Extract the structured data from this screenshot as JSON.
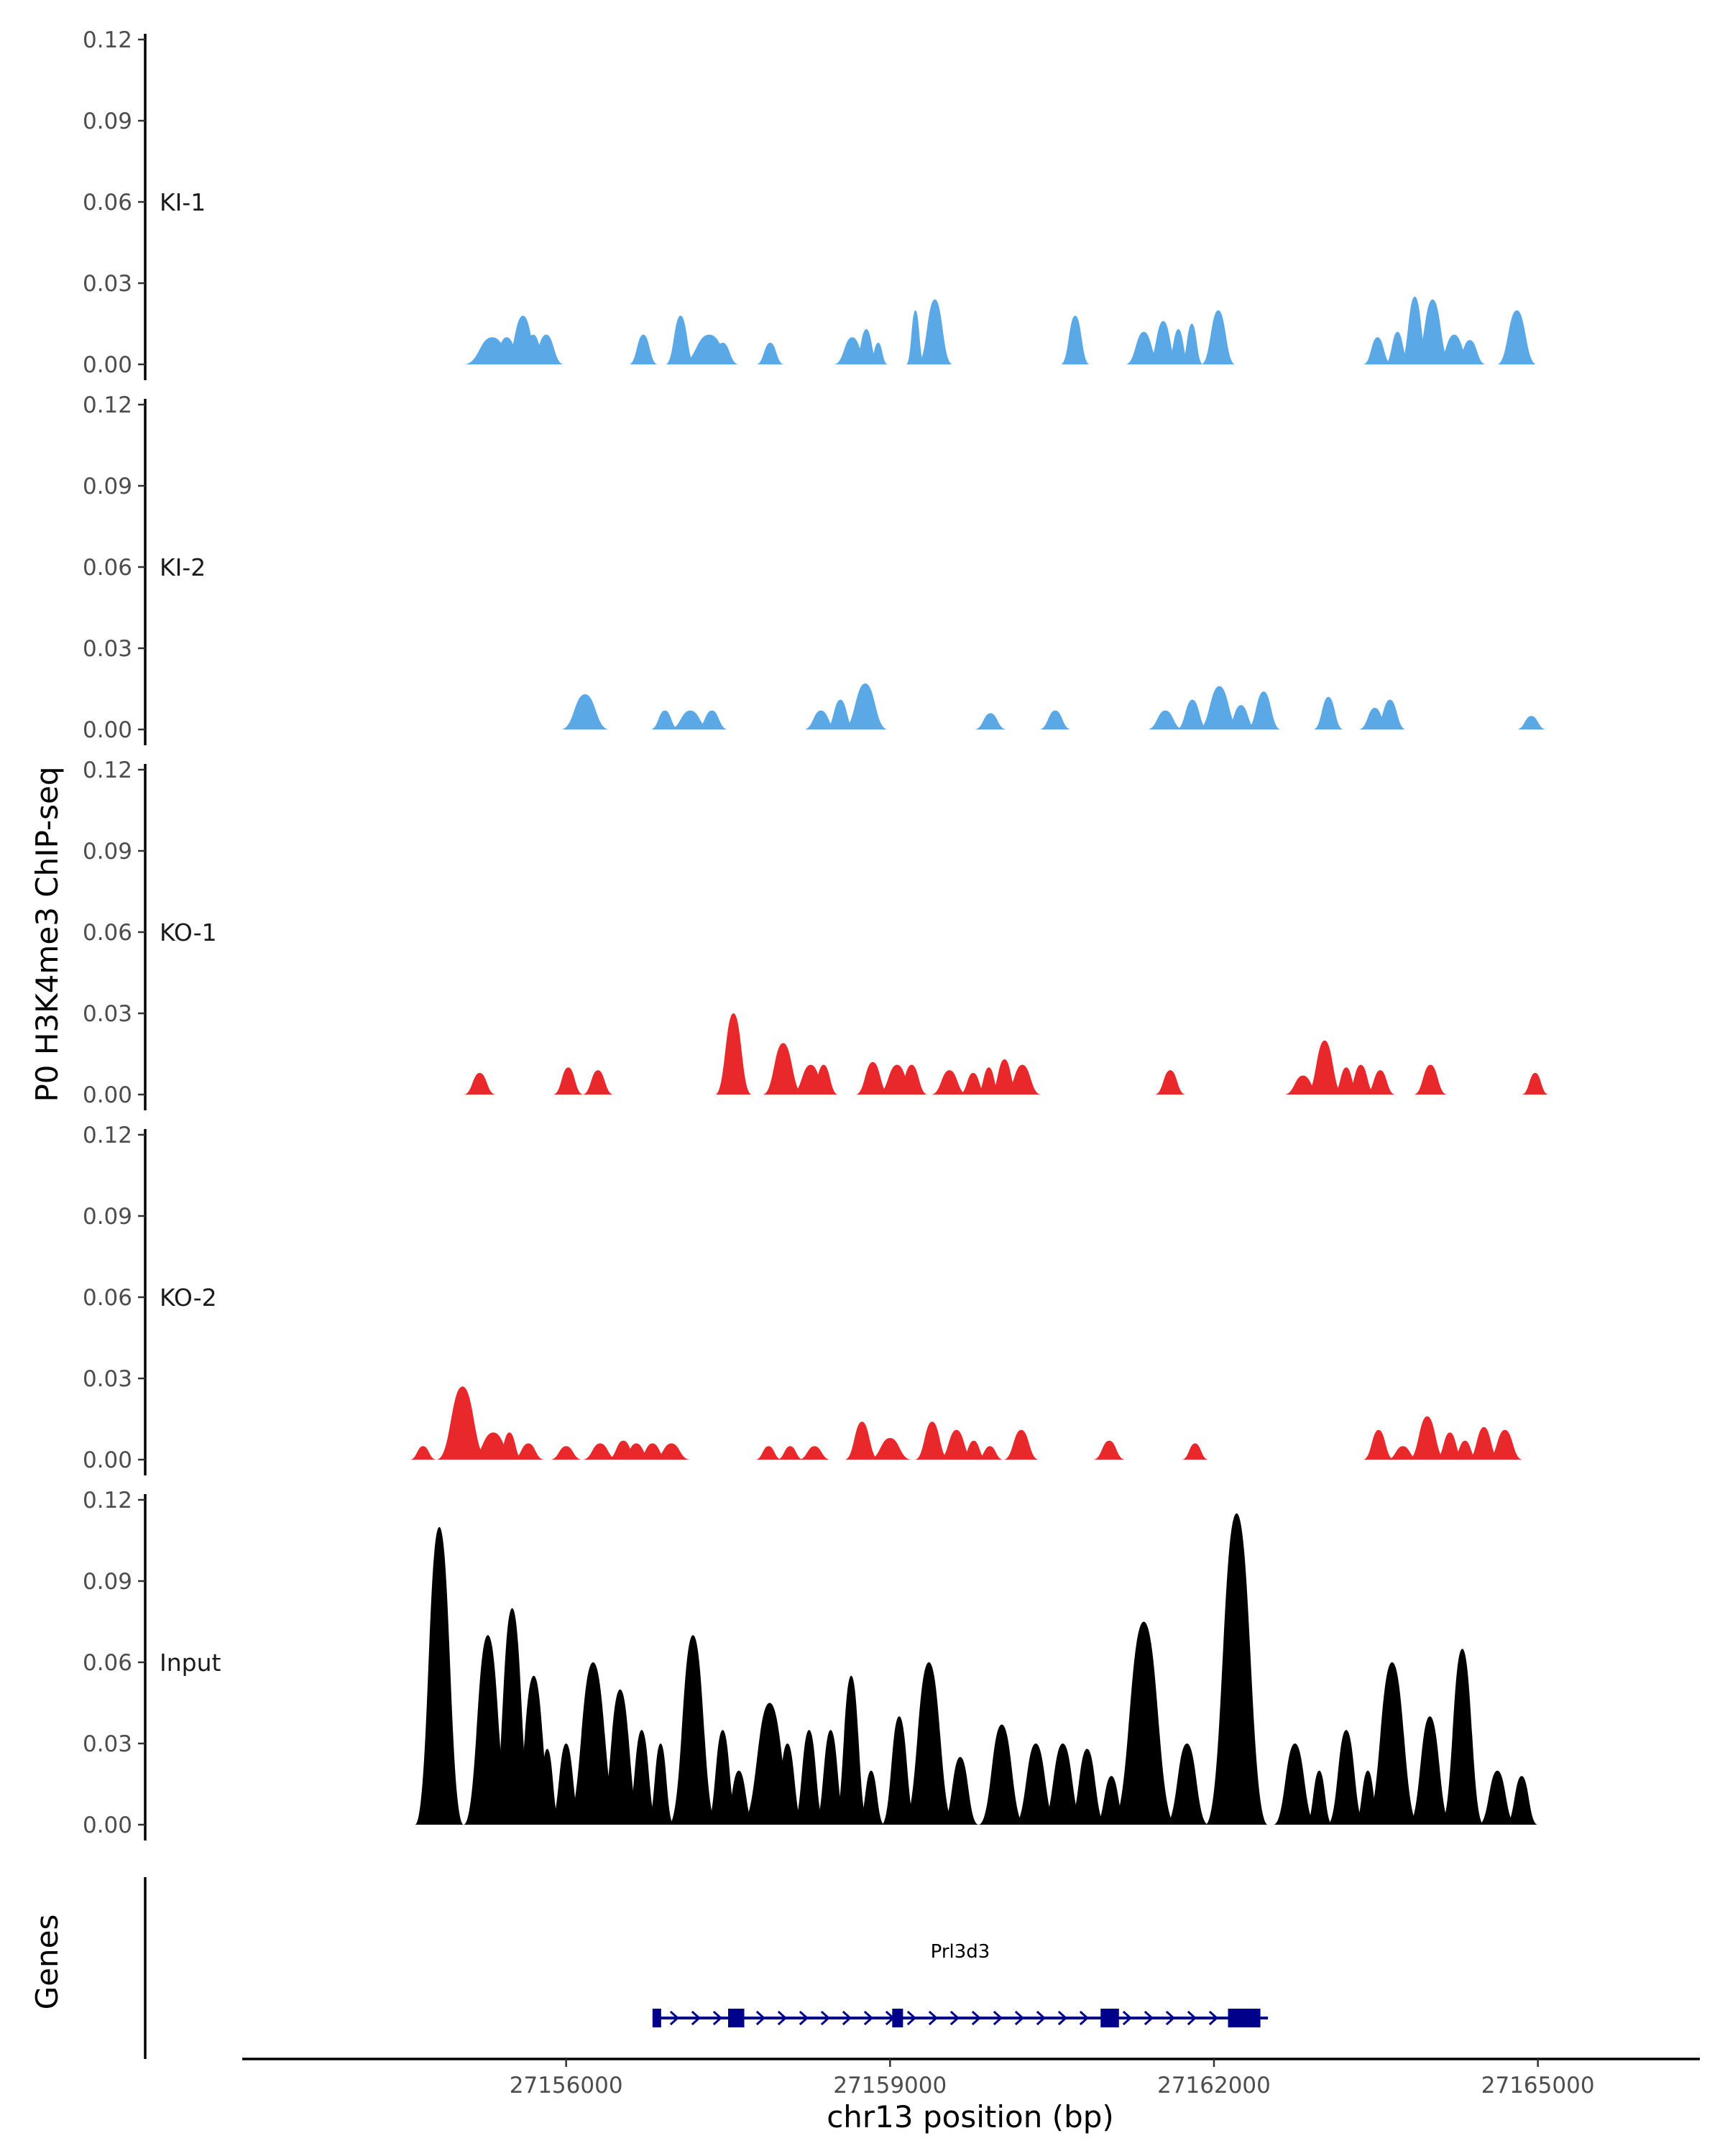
{
  "chart_data": {
    "type": "area",
    "title": "",
    "ylabel": "P0 H3K4me3 ChIP-seq",
    "xlabel": "chr13 position (bp)",
    "xlim": [
      27153000,
      27166500
    ],
    "ylim": [
      0,
      0.12
    ],
    "yticks": [
      0,
      0.03,
      0.06,
      0.09,
      0.12
    ],
    "ytick_labels": [
      "0.00",
      "0.03",
      "0.06",
      "0.09",
      "0.12"
    ],
    "xticks": [
      27156000,
      27159000,
      27162000,
      27165000
    ],
    "xtick_labels": [
      "27156000",
      "27159000",
      "27162000",
      "27165000"
    ],
    "series": [
      {
        "name": "KI-1",
        "color": "#5aa9e6",
        "peaks": [
          [
            27155050,
            27155580,
            0.01
          ],
          [
            27155280,
            27155620,
            0.01
          ],
          [
            27155420,
            27155780,
            0.018
          ],
          [
            27155550,
            27155840,
            0.011
          ],
          [
            27155650,
            27155980,
            0.011
          ],
          [
            27156580,
            27156850,
            0.011
          ],
          [
            27156920,
            27157200,
            0.018
          ],
          [
            27157050,
            27157600,
            0.011
          ],
          [
            27157300,
            27157600,
            0.008
          ],
          [
            27157760,
            27158020,
            0.008
          ],
          [
            27158480,
            27158820,
            0.01
          ],
          [
            27158660,
            27158900,
            0.013
          ],
          [
            27158800,
            27158980,
            0.008
          ],
          [
            27159150,
            27159320,
            0.02
          ],
          [
            27159250,
            27159580,
            0.024
          ],
          [
            27160580,
            27160850,
            0.018
          ],
          [
            27161180,
            27161520,
            0.012
          ],
          [
            27161380,
            27161680,
            0.016
          ],
          [
            27161560,
            27161780,
            0.013
          ],
          [
            27161690,
            27161900,
            0.015
          ],
          [
            27161880,
            27162200,
            0.02
          ],
          [
            27163380,
            27163650,
            0.01
          ],
          [
            27163580,
            27163820,
            0.012
          ],
          [
            27163720,
            27164000,
            0.025
          ],
          [
            27163850,
            27164200,
            0.024
          ],
          [
            27164050,
            27164400,
            0.011
          ],
          [
            27164220,
            27164520,
            0.009
          ],
          [
            27164620,
            27164990,
            0.02
          ]
        ]
      },
      {
        "name": "KI-2",
        "color": "#5aa9e6",
        "peaks": [
          [
            27155950,
            27156400,
            0.013
          ],
          [
            27156780,
            27157050,
            0.007
          ],
          [
            27156950,
            27157350,
            0.007
          ],
          [
            27157200,
            27157500,
            0.007
          ],
          [
            27158200,
            27158520,
            0.007
          ],
          [
            27158400,
            27158680,
            0.011
          ],
          [
            27158560,
            27158980,
            0.017
          ],
          [
            27159780,
            27160080,
            0.006
          ],
          [
            27160380,
            27160680,
            0.007
          ],
          [
            27161380,
            27161720,
            0.007
          ],
          [
            27161650,
            27161950,
            0.011
          ],
          [
            27161850,
            27162250,
            0.016
          ],
          [
            27162100,
            27162400,
            0.009
          ],
          [
            27162300,
            27162620,
            0.014
          ],
          [
            27162920,
            27163200,
            0.012
          ],
          [
            27163340,
            27163640,
            0.008
          ],
          [
            27163480,
            27163780,
            0.011
          ],
          [
            27164800,
            27165080,
            0.005
          ]
        ]
      },
      {
        "name": "KO-1",
        "color": "#e8282b",
        "peaks": [
          [
            27155050,
            27155350,
            0.008
          ],
          [
            27155880,
            27156160,
            0.01
          ],
          [
            27156150,
            27156440,
            0.009
          ],
          [
            27157380,
            27157720,
            0.03
          ],
          [
            27157820,
            27158200,
            0.019
          ],
          [
            27158080,
            27158450,
            0.011
          ],
          [
            27158250,
            27158520,
            0.011
          ],
          [
            27158680,
            27159000,
            0.012
          ],
          [
            27158880,
            27159250,
            0.011
          ],
          [
            27159050,
            27159350,
            0.011
          ],
          [
            27159380,
            27159720,
            0.009
          ],
          [
            27159640,
            27159900,
            0.008
          ],
          [
            27159800,
            27160030,
            0.01
          ],
          [
            27159920,
            27160200,
            0.013
          ],
          [
            27160050,
            27160400,
            0.011
          ],
          [
            27161450,
            27161740,
            0.009
          ],
          [
            27162650,
            27163000,
            0.007
          ],
          [
            27162850,
            27163200,
            0.02
          ],
          [
            27163100,
            27163350,
            0.01
          ],
          [
            27163220,
            27163500,
            0.011
          ],
          [
            27163400,
            27163680,
            0.009
          ],
          [
            27163850,
            27164160,
            0.011
          ],
          [
            27164850,
            27165100,
            0.008
          ]
        ]
      },
      {
        "name": "KO-2",
        "color": "#e8282b",
        "peaks": [
          [
            27154550,
            27154800,
            0.005
          ],
          [
            27154800,
            27155280,
            0.027
          ],
          [
            27155100,
            27155550,
            0.01
          ],
          [
            27155350,
            27155600,
            0.01
          ],
          [
            27155500,
            27155800,
            0.006
          ],
          [
            27155850,
            27156150,
            0.005
          ],
          [
            27156150,
            27156480,
            0.006
          ],
          [
            27156380,
            27156680,
            0.007
          ],
          [
            27156500,
            27156800,
            0.006
          ],
          [
            27156650,
            27156950,
            0.006
          ],
          [
            27156800,
            27157150,
            0.006
          ],
          [
            27157750,
            27158000,
            0.005
          ],
          [
            27157950,
            27158200,
            0.005
          ],
          [
            27158150,
            27158450,
            0.005
          ],
          [
            27158580,
            27158900,
            0.014
          ],
          [
            27158800,
            27159200,
            0.008
          ],
          [
            27159230,
            27159550,
            0.014
          ],
          [
            27159450,
            27159780,
            0.011
          ],
          [
            27159650,
            27159900,
            0.007
          ],
          [
            27159800,
            27160050,
            0.005
          ],
          [
            27160050,
            27160380,
            0.011
          ],
          [
            27160880,
            27161180,
            0.007
          ],
          [
            27161700,
            27161950,
            0.006
          ],
          [
            27163380,
            27163670,
            0.011
          ],
          [
            27163600,
            27163900,
            0.005
          ],
          [
            27163800,
            27164150,
            0.016
          ],
          [
            27164050,
            27164320,
            0.01
          ],
          [
            27164200,
            27164450,
            0.007
          ],
          [
            27164350,
            27164650,
            0.012
          ],
          [
            27164530,
            27164860,
            0.011
          ]
        ]
      },
      {
        "name": "Input",
        "color": "#000000",
        "peaks": [
          [
            27154600,
            27155050,
            0.11
          ],
          [
            27155050,
            27155500,
            0.07
          ],
          [
            27155300,
            27155700,
            0.08
          ],
          [
            27155500,
            27155900,
            0.055
          ],
          [
            27155700,
            27155950,
            0.028
          ],
          [
            27155850,
            27156150,
            0.03
          ],
          [
            27156000,
            27156500,
            0.06
          ],
          [
            27156300,
            27156700,
            0.05
          ],
          [
            27156550,
            27156850,
            0.035
          ],
          [
            27156750,
            27157000,
            0.03
          ],
          [
            27156950,
            27157400,
            0.07
          ],
          [
            27157300,
            27157600,
            0.035
          ],
          [
            27157450,
            27157750,
            0.02
          ],
          [
            27157620,
            27158150,
            0.045
          ],
          [
            27157900,
            27158200,
            0.03
          ],
          [
            27158100,
            27158400,
            0.035
          ],
          [
            27158300,
            27158600,
            0.035
          ],
          [
            27158480,
            27158800,
            0.055
          ],
          [
            27158700,
            27158950,
            0.02
          ],
          [
            27158920,
            27159250,
            0.04
          ],
          [
            27159120,
            27159600,
            0.06
          ],
          [
            27159480,
            27159820,
            0.025
          ],
          [
            27159820,
            27160250,
            0.037
          ],
          [
            27160150,
            27160550,
            0.03
          ],
          [
            27160400,
            27160800,
            0.03
          ],
          [
            27160650,
            27161000,
            0.028
          ],
          [
            27160900,
            27161200,
            0.018
          ],
          [
            27161050,
            27161650,
            0.075
          ],
          [
            27161550,
            27161950,
            0.03
          ],
          [
            27161920,
            27162500,
            0.115
          ],
          [
            27162550,
            27162950,
            0.03
          ],
          [
            27162850,
            27163100,
            0.02
          ],
          [
            27163050,
            27163400,
            0.035
          ],
          [
            27163300,
            27163550,
            0.02
          ],
          [
            27163400,
            27163900,
            0.06
          ],
          [
            27163800,
            27164200,
            0.04
          ],
          [
            27164100,
            27164500,
            0.065
          ],
          [
            27164450,
            27164800,
            0.02
          ],
          [
            27164700,
            27165000,
            0.018
          ]
        ]
      }
    ],
    "genes": [
      {
        "name": "Prl3d3",
        "start": 27156800,
        "end": 27162500,
        "color": "#00008b",
        "exons": [
          [
            27156800,
            27156880
          ],
          [
            27157500,
            27157650
          ],
          [
            27159020,
            27159120
          ],
          [
            27160950,
            27161120
          ],
          [
            27162130,
            27162430
          ]
        ]
      }
    ],
    "gene_track_label": "Genes",
    "legend": "none"
  }
}
